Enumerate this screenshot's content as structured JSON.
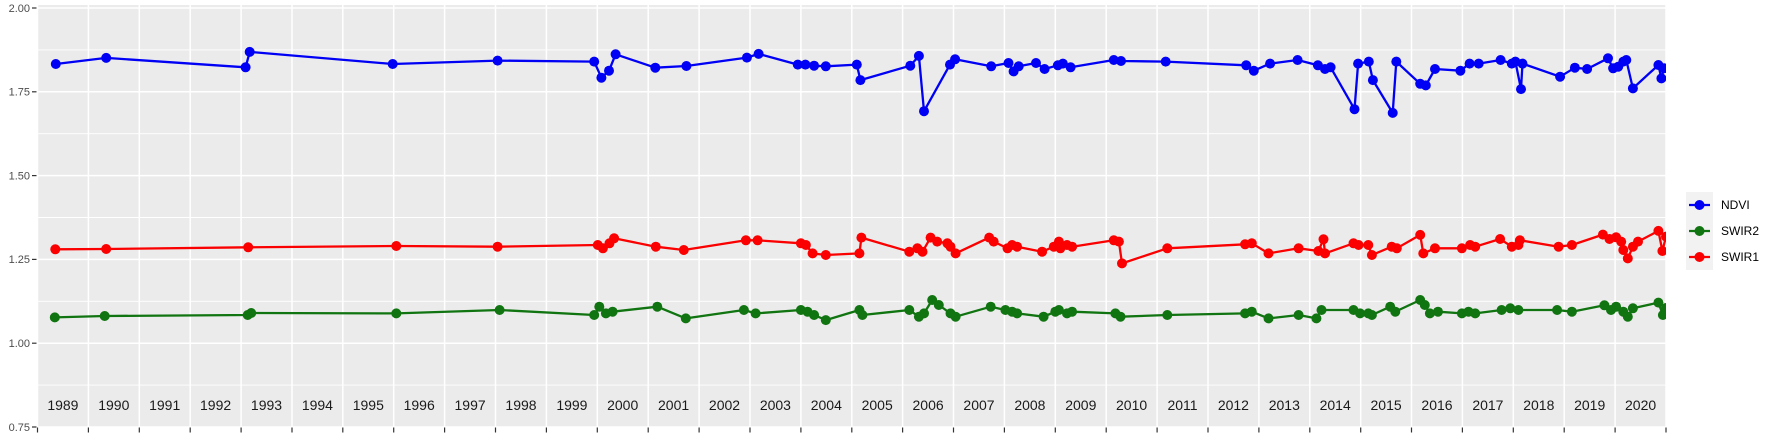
{
  "chart_data": {
    "type": "line-scatter",
    "title": "",
    "xlabel": "",
    "ylabel": "",
    "x_axis": {
      "domain": [
        1989,
        2021.05
      ],
      "gridline_years": [
        1989,
        1990,
        1991,
        1992,
        1993,
        1994,
        1995,
        1996,
        1997,
        1998,
        1999,
        2000,
        2001,
        2002,
        2003,
        2004,
        2005,
        2006,
        2007,
        2008,
        2009,
        2010,
        2011,
        2012,
        2013,
        2014,
        2015,
        2016,
        2017,
        2018,
        2019,
        2020,
        2021
      ],
      "year_labels": [
        "1989",
        "1990",
        "1991",
        "1992",
        "1993",
        "1994",
        "1995",
        "1996",
        "1997",
        "1998",
        "1999",
        "2000",
        "2001",
        "2002",
        "2003",
        "2004",
        "2005",
        "2006",
        "2007",
        "2008",
        "2009",
        "2010",
        "2011",
        "2012",
        "2013",
        "2014",
        "2015",
        "2016",
        "2017",
        "2018",
        "2019",
        "2020"
      ]
    },
    "y_axis": {
      "domain": [
        0.75,
        2.0
      ],
      "ticks": [
        0.75,
        1.0,
        1.25,
        1.5,
        1.75,
        2.0
      ],
      "tick_labels": [
        "0.75",
        "1.00",
        "1.25",
        "1.50",
        "1.75",
        "2.00"
      ],
      "minor_gridlines": [
        0.875,
        1.125,
        1.375,
        1.625,
        1.875
      ],
      "grid": true
    },
    "legend": {
      "position": "right",
      "items": [
        {
          "label": "NDVI",
          "color": "#0000F5"
        },
        {
          "label": "SWIR2",
          "color": "#107410"
        },
        {
          "label": "SWIR1",
          "color": "#FB0000"
        }
      ]
    },
    "colors": {
      "panel_bg": "#EBEBEB",
      "gridline": "#FFFFFF",
      "axis_text": "#4D4D4D",
      "year_label_text": "#1A1A1A",
      "tick_mark": "#333333"
    },
    "series": [
      {
        "name": "NDVI",
        "color": "#0000F5",
        "points": [
          [
            1989.36,
            1.833
          ],
          [
            1990.35,
            1.851
          ],
          [
            1993.09,
            1.823
          ],
          [
            1993.17,
            1.869
          ],
          [
            1995.98,
            1.833
          ],
          [
            1998.04,
            1.843
          ],
          [
            1999.94,
            1.84
          ],
          [
            2000.08,
            1.792
          ],
          [
            2000.23,
            1.813
          ],
          [
            2000.36,
            1.862
          ],
          [
            2001.14,
            1.822
          ],
          [
            2001.75,
            1.827
          ],
          [
            2002.94,
            1.852
          ],
          [
            2003.17,
            1.863
          ],
          [
            2003.94,
            1.831
          ],
          [
            2004.09,
            1.831
          ],
          [
            2004.26,
            1.828
          ],
          [
            2004.49,
            1.826
          ],
          [
            2005.1,
            1.831
          ],
          [
            2005.17,
            1.785
          ],
          [
            2006.15,
            1.828
          ],
          [
            2006.32,
            1.857
          ],
          [
            2006.42,
            1.692
          ],
          [
            2006.93,
            1.831
          ],
          [
            2007.03,
            1.847
          ],
          [
            2007.74,
            1.826
          ],
          [
            2008.08,
            1.836
          ],
          [
            2008.18,
            1.811
          ],
          [
            2008.28,
            1.826
          ],
          [
            2008.62,
            1.836
          ],
          [
            2008.79,
            1.818
          ],
          [
            2009.05,
            1.829
          ],
          [
            2009.15,
            1.834
          ],
          [
            2009.3,
            1.823
          ],
          [
            2010.15,
            1.845
          ],
          [
            2010.29,
            1.842
          ],
          [
            2011.17,
            1.84
          ],
          [
            2012.75,
            1.829
          ],
          [
            2012.9,
            1.813
          ],
          [
            2013.22,
            1.834
          ],
          [
            2013.76,
            1.845
          ],
          [
            2014.16,
            1.829
          ],
          [
            2014.3,
            1.818
          ],
          [
            2014.41,
            1.823
          ],
          [
            2014.88,
            1.698
          ],
          [
            2014.95,
            1.834
          ],
          [
            2015.16,
            1.84
          ],
          [
            2015.24,
            1.785
          ],
          [
            2015.63,
            1.687
          ],
          [
            2015.7,
            1.84
          ],
          [
            2016.17,
            1.774
          ],
          [
            2016.28,
            1.769
          ],
          [
            2016.46,
            1.818
          ],
          [
            2016.96,
            1.813
          ],
          [
            2017.14,
            1.834
          ],
          [
            2017.32,
            1.834
          ],
          [
            2017.75,
            1.845
          ],
          [
            2017.97,
            1.834
          ],
          [
            2018.04,
            1.84
          ],
          [
            2018.15,
            1.758
          ],
          [
            2018.18,
            1.834
          ],
          [
            2018.92,
            1.795
          ],
          [
            2019.21,
            1.822
          ],
          [
            2019.45,
            1.818
          ],
          [
            2019.86,
            1.85
          ],
          [
            2019.96,
            1.82
          ],
          [
            2020.06,
            1.825
          ],
          [
            2020.16,
            1.84
          ],
          [
            2020.22,
            1.845
          ],
          [
            2020.35,
            1.76
          ],
          [
            2020.85,
            1.83
          ],
          [
            2020.91,
            1.79
          ],
          [
            2020.96,
            1.82
          ]
        ]
      },
      {
        "name": "SWIR2",
        "color": "#107410",
        "points": [
          [
            1989.34,
            1.077
          ],
          [
            1990.32,
            1.081
          ],
          [
            1993.13,
            1.084
          ],
          [
            1993.2,
            1.09
          ],
          [
            1996.05,
            1.089
          ],
          [
            1998.08,
            1.099
          ],
          [
            1999.94,
            1.084
          ],
          [
            2000.04,
            1.109
          ],
          [
            2000.17,
            1.089
          ],
          [
            2000.3,
            1.094
          ],
          [
            2001.18,
            1.109
          ],
          [
            2001.74,
            1.074
          ],
          [
            2002.88,
            1.099
          ],
          [
            2003.11,
            1.089
          ],
          [
            2004.0,
            1.099
          ],
          [
            2004.13,
            1.094
          ],
          [
            2004.26,
            1.084
          ],
          [
            2004.49,
            1.069
          ],
          [
            2005.15,
            1.099
          ],
          [
            2005.21,
            1.084
          ],
          [
            2006.13,
            1.099
          ],
          [
            2006.32,
            1.079
          ],
          [
            2006.42,
            1.089
          ],
          [
            2006.58,
            1.129
          ],
          [
            2006.71,
            1.114
          ],
          [
            2006.94,
            1.089
          ],
          [
            2007.04,
            1.079
          ],
          [
            2007.73,
            1.109
          ],
          [
            2008.02,
            1.099
          ],
          [
            2008.15,
            1.094
          ],
          [
            2008.25,
            1.089
          ],
          [
            2008.77,
            1.079
          ],
          [
            2009.0,
            1.094
          ],
          [
            2009.07,
            1.099
          ],
          [
            2009.23,
            1.089
          ],
          [
            2009.33,
            1.094
          ],
          [
            2010.18,
            1.089
          ],
          [
            2010.28,
            1.079
          ],
          [
            2011.2,
            1.084
          ],
          [
            2012.73,
            1.089
          ],
          [
            2012.86,
            1.094
          ],
          [
            2013.19,
            1.074
          ],
          [
            2013.78,
            1.084
          ],
          [
            2014.13,
            1.074
          ],
          [
            2014.23,
            1.099
          ],
          [
            2014.86,
            1.099
          ],
          [
            2014.99,
            1.089
          ],
          [
            2015.15,
            1.089
          ],
          [
            2015.22,
            1.084
          ],
          [
            2015.58,
            1.109
          ],
          [
            2015.68,
            1.094
          ],
          [
            2016.17,
            1.129
          ],
          [
            2016.26,
            1.114
          ],
          [
            2016.36,
            1.089
          ],
          [
            2016.52,
            1.094
          ],
          [
            2016.99,
            1.089
          ],
          [
            2017.12,
            1.094
          ],
          [
            2017.25,
            1.089
          ],
          [
            2017.77,
            1.099
          ],
          [
            2017.94,
            1.104
          ],
          [
            2018.1,
            1.099
          ],
          [
            2018.86,
            1.099
          ],
          [
            2019.15,
            1.094
          ],
          [
            2019.79,
            1.113
          ],
          [
            2019.92,
            1.099
          ],
          [
            2020.02,
            1.109
          ],
          [
            2020.16,
            1.094
          ],
          [
            2020.25,
            1.079
          ],
          [
            2020.35,
            1.104
          ],
          [
            2020.85,
            1.121
          ],
          [
            2020.94,
            1.084
          ],
          [
            2021.0,
            1.105
          ]
        ]
      },
      {
        "name": "SWIR1",
        "color": "#FB0000",
        "points": [
          [
            1989.35,
            1.28
          ],
          [
            1990.35,
            1.281
          ],
          [
            1993.14,
            1.286
          ],
          [
            1996.05,
            1.29
          ],
          [
            1998.04,
            1.288
          ],
          [
            2000.01,
            1.293
          ],
          [
            2000.11,
            1.283
          ],
          [
            2000.24,
            1.298
          ],
          [
            2000.33,
            1.313
          ],
          [
            2001.15,
            1.288
          ],
          [
            2001.7,
            1.278
          ],
          [
            2002.92,
            1.307
          ],
          [
            2003.15,
            1.307
          ],
          [
            2004.0,
            1.298
          ],
          [
            2004.1,
            1.293
          ],
          [
            2004.23,
            1.268
          ],
          [
            2004.49,
            1.263
          ],
          [
            2005.15,
            1.268
          ],
          [
            2005.19,
            1.315
          ],
          [
            2006.13,
            1.273
          ],
          [
            2006.29,
            1.283
          ],
          [
            2006.39,
            1.273
          ],
          [
            2006.55,
            1.315
          ],
          [
            2006.68,
            1.303
          ],
          [
            2006.88,
            1.298
          ],
          [
            2006.94,
            1.288
          ],
          [
            2007.04,
            1.268
          ],
          [
            2007.7,
            1.315
          ],
          [
            2007.79,
            1.303
          ],
          [
            2008.06,
            1.283
          ],
          [
            2008.15,
            1.293
          ],
          [
            2008.25,
            1.288
          ],
          [
            2008.74,
            1.273
          ],
          [
            2008.97,
            1.288
          ],
          [
            2009.07,
            1.303
          ],
          [
            2009.1,
            1.283
          ],
          [
            2009.23,
            1.293
          ],
          [
            2009.33,
            1.288
          ],
          [
            2010.15,
            1.307
          ],
          [
            2010.25,
            1.303
          ],
          [
            2010.31,
            1.238
          ],
          [
            2011.2,
            1.283
          ],
          [
            2012.73,
            1.295
          ],
          [
            2012.86,
            1.298
          ],
          [
            2013.19,
            1.268
          ],
          [
            2013.78,
            1.283
          ],
          [
            2014.17,
            1.275
          ],
          [
            2014.27,
            1.31
          ],
          [
            2014.3,
            1.268
          ],
          [
            2014.86,
            1.298
          ],
          [
            2014.96,
            1.293
          ],
          [
            2015.15,
            1.293
          ],
          [
            2015.22,
            1.263
          ],
          [
            2015.61,
            1.288
          ],
          [
            2015.71,
            1.283
          ],
          [
            2016.17,
            1.323
          ],
          [
            2016.23,
            1.268
          ],
          [
            2016.46,
            1.283
          ],
          [
            2016.99,
            1.283
          ],
          [
            2017.15,
            1.293
          ],
          [
            2017.25,
            1.288
          ],
          [
            2017.74,
            1.311
          ],
          [
            2017.97,
            1.288
          ],
          [
            2018.1,
            1.293
          ],
          [
            2018.13,
            1.307
          ],
          [
            2018.89,
            1.288
          ],
          [
            2019.15,
            1.293
          ],
          [
            2019.76,
            1.324
          ],
          [
            2019.89,
            1.311
          ],
          [
            2020.02,
            1.316
          ],
          [
            2020.12,
            1.303
          ],
          [
            2020.16,
            1.278
          ],
          [
            2020.25,
            1.253
          ],
          [
            2020.35,
            1.288
          ],
          [
            2020.45,
            1.303
          ],
          [
            2020.85,
            1.335
          ],
          [
            2020.93,
            1.275
          ],
          [
            2021.0,
            1.318
          ]
        ]
      }
    ]
  }
}
